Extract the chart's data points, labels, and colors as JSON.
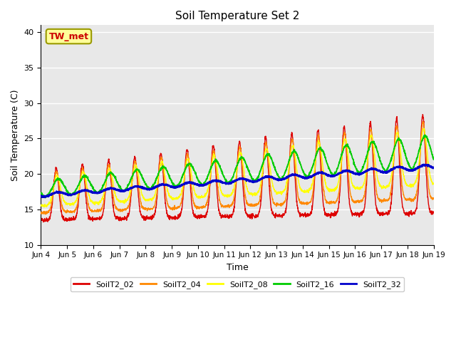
{
  "title": "Soil Temperature Set 2",
  "xlabel": "Time",
  "ylabel": "Soil Temperature (C)",
  "ylim": [
    10,
    41
  ],
  "annotation": "TW_met",
  "annotation_color": "#cc0000",
  "annotation_bg": "#ffff99",
  "annotation_edge": "#999900",
  "bg_color": "#e8e8e8",
  "grid_color": "#ffffff",
  "fig_bg": "#ffffff",
  "series_colors": {
    "SoilT2_02": "#dd0000",
    "SoilT2_04": "#ff8800",
    "SoilT2_08": "#ffff00",
    "SoilT2_16": "#00cc00",
    "SoilT2_32": "#0000cc"
  },
  "x_tick_labels": [
    "Jun 4",
    "Jun 5",
    "Jun 6",
    "Jun 7",
    "Jun 8",
    "Jun 9",
    "Jun 10",
    "Jun 11",
    "Jun 12",
    "Jun 13",
    "Jun 14",
    "Jun 15",
    "Jun 16",
    "Jun 17",
    "Jun 18",
    "Jun 19"
  ],
  "x_tick_positions": [
    0,
    1,
    2,
    3,
    4,
    5,
    6,
    7,
    8,
    9,
    10,
    11,
    12,
    13,
    14,
    15
  ],
  "y_ticks": [
    10,
    15,
    20,
    25,
    30,
    35,
    40
  ]
}
